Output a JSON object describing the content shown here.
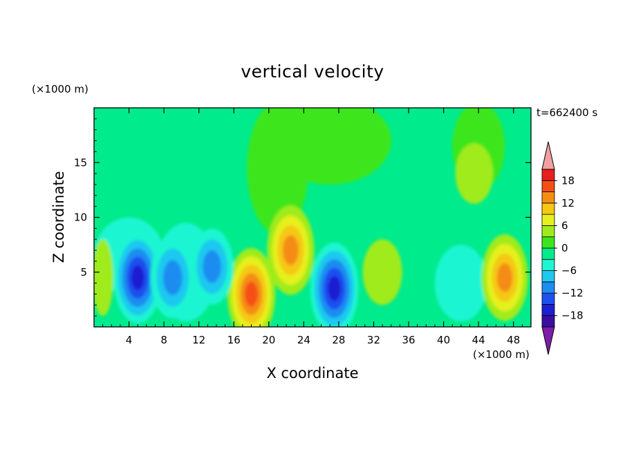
{
  "chart_data": {
    "type": "heatmap",
    "title": "vertical velocity",
    "xlabel": "X coordinate",
    "ylabel": "Z coordinate",
    "x_unit_label": "(×1000 m)",
    "y_unit_label": "(×1000 m)",
    "time_label": "t=662400 s",
    "xlim": [
      0,
      50
    ],
    "ylim": [
      0,
      20
    ],
    "x_ticks": [
      4,
      8,
      12,
      16,
      20,
      24,
      28,
      32,
      36,
      40,
      44,
      48
    ],
    "y_ticks": [
      5,
      10,
      15
    ],
    "colorbar": {
      "levels": [
        -21,
        -18,
        -15,
        -12,
        -9,
        -6,
        -3,
        0,
        3,
        6,
        9,
        12,
        15,
        18,
        21
      ],
      "tick_labels": [
        "18",
        "12",
        "6",
        "0",
        "−6",
        "−12",
        "−18"
      ],
      "tick_values": [
        18,
        12,
        6,
        0,
        -6,
        -12,
        -18
      ],
      "colors": [
        "#7a1ea8",
        "#3a0fa0",
        "#1e1ed2",
        "#1e50f0",
        "#1e8cf0",
        "#1ec8f0",
        "#1ef5d2",
        "#00eb8c",
        "#3ce61e",
        "#a0eb1e",
        "#e6f01e",
        "#f5c814",
        "#f58c14",
        "#f55014",
        "#e61e1e",
        "#f0a0a0"
      ]
    },
    "grid": false,
    "features": [
      {
        "x": 18,
        "z": 3,
        "value": 15
      },
      {
        "x": 22.5,
        "z": 7,
        "value": 14
      },
      {
        "x": 47,
        "z": 4.5,
        "value": 13
      },
      {
        "x": 33,
        "z": 5,
        "value": 5
      },
      {
        "x": 5,
        "z": 4.5,
        "value": -15
      },
      {
        "x": 27.5,
        "z": 3.5,
        "value": -15
      },
      {
        "x": 9,
        "z": 4.5,
        "value": -11
      },
      {
        "x": 13.5,
        "z": 5.5,
        "value": -9
      },
      {
        "x": 43.5,
        "z": 14,
        "value": 3
      },
      {
        "x": 25,
        "z": 11,
        "value": 2
      }
    ]
  }
}
